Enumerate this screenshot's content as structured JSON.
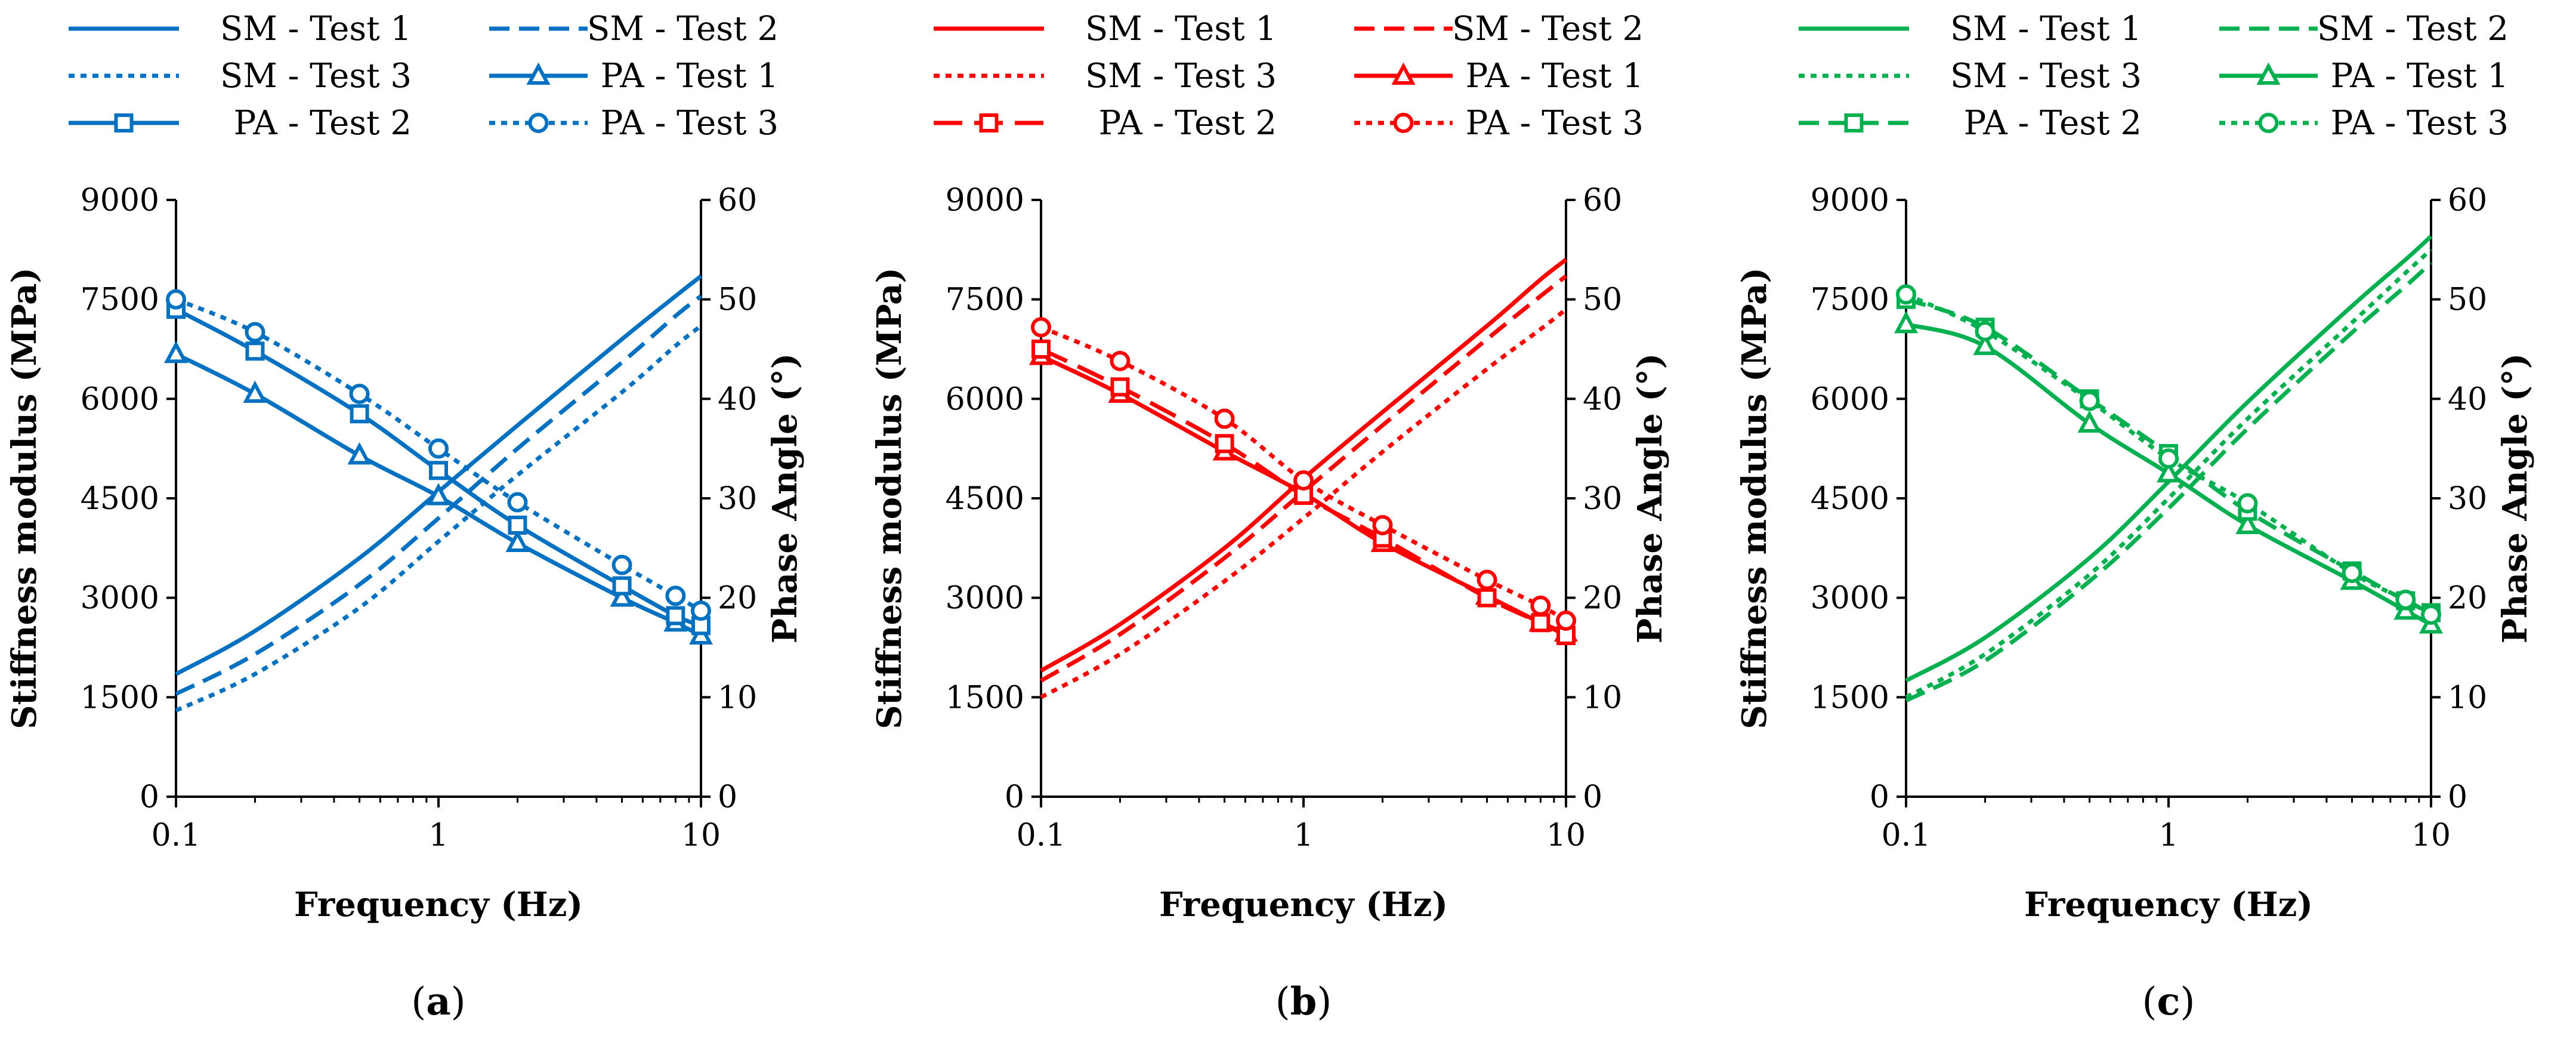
{
  "chart_data": [
    {
      "type": "line",
      "panel": "a",
      "caption": "a",
      "color": "#0070C0",
      "xlabel": "Frequency (Hz)",
      "ylabel": "Stiffness modulus (MPa)",
      "y2label": "Phase Angle (°)",
      "xscale": "log",
      "xlim": [
        0.1,
        10
      ],
      "x_ticks": [
        "0.1",
        "1",
        "10"
      ],
      "ylim": [
        0,
        9000
      ],
      "y_ticks": [
        "0",
        "1500",
        "3000",
        "4500",
        "6000",
        "7500",
        "9000"
      ],
      "y2lim": [
        0,
        60
      ],
      "y2_ticks": [
        "0",
        "10",
        "20",
        "30",
        "40",
        "50",
        "60"
      ],
      "legend": [
        {
          "label": "SM - Test 1",
          "dash": "solid",
          "marker": "none"
        },
        {
          "label": "SM - Test 2",
          "dash": "dash",
          "marker": "none"
        },
        {
          "label": "SM - Test 3",
          "dash": "dot",
          "marker": "none"
        },
        {
          "label": "PA - Test 1",
          "dash": "solid",
          "marker": "triangle"
        },
        {
          "label": "PA - Test 2",
          "dash": "solid",
          "marker": "square"
        },
        {
          "label": "PA - Test 3",
          "dash": "dot",
          "marker": "circle"
        }
      ],
      "series": [
        {
          "name": "SM - Test 1",
          "axis": "left",
          "dash": "solid",
          "marker": "none",
          "x": [
            0.1,
            0.2,
            0.5,
            1,
            2,
            5,
            8,
            10
          ],
          "values": [
            1850,
            2500,
            3600,
            4600,
            5600,
            6900,
            7550,
            7850
          ]
        },
        {
          "name": "SM - Test 2",
          "axis": "left",
          "dash": "dash",
          "marker": "none",
          "x": [
            0.1,
            0.2,
            0.5,
            1,
            2,
            5,
            8,
            10
          ],
          "values": [
            1550,
            2150,
            3200,
            4200,
            5250,
            6550,
            7250,
            7550
          ]
        },
        {
          "name": "SM - Test 3",
          "axis": "left",
          "dash": "dot",
          "marker": "none",
          "x": [
            0.1,
            0.2,
            0.5,
            1,
            2,
            5,
            8,
            10
          ],
          "values": [
            1300,
            1850,
            2850,
            3850,
            4850,
            6100,
            6800,
            7100
          ]
        },
        {
          "name": "PA - Test 1",
          "axis": "right",
          "dash": "solid",
          "marker": "triangle",
          "x": [
            0.1,
            0.2,
            0.5,
            1,
            2,
            5,
            8,
            10
          ],
          "values": [
            44.5,
            40.5,
            34.3,
            30.2,
            25.5,
            20.0,
            17.5,
            16.2
          ]
        },
        {
          "name": "PA - Test 2",
          "axis": "right",
          "dash": "solid",
          "marker": "square",
          "x": [
            0.1,
            0.2,
            0.5,
            1,
            2,
            5,
            8,
            10
          ],
          "values": [
            49.0,
            44.8,
            38.5,
            32.8,
            27.3,
            21.2,
            18.2,
            17.2
          ]
        },
        {
          "name": "PA - Test 3",
          "axis": "right",
          "dash": "dot",
          "marker": "circle",
          "x": [
            0.1,
            0.2,
            0.5,
            1,
            2,
            5,
            8,
            10
          ],
          "values": [
            50.0,
            46.7,
            40.5,
            35.0,
            29.6,
            23.3,
            20.2,
            18.7
          ]
        }
      ]
    },
    {
      "type": "line",
      "panel": "b",
      "caption": "b",
      "color": "#FF0000",
      "xlabel": "Frequency (Hz)",
      "ylabel": "Stiffness modulus (MPa)",
      "y2label": "Phase Angle (°)",
      "xscale": "log",
      "xlim": [
        0.1,
        10
      ],
      "x_ticks": [
        "0.1",
        "1",
        "10"
      ],
      "ylim": [
        0,
        9000
      ],
      "y_ticks": [
        "0",
        "1500",
        "3000",
        "4500",
        "6000",
        "7500",
        "9000"
      ],
      "y2lim": [
        0,
        60
      ],
      "y2_ticks": [
        "0",
        "10",
        "20",
        "30",
        "40",
        "50",
        "60"
      ],
      "legend": [
        {
          "label": "SM - Test 1",
          "dash": "solid",
          "marker": "none"
        },
        {
          "label": "SM - Test 2",
          "dash": "dash",
          "marker": "none"
        },
        {
          "label": "SM - Test 3",
          "dash": "dot",
          "marker": "none"
        },
        {
          "label": "PA - Test 1",
          "dash": "solid",
          "marker": "triangle"
        },
        {
          "label": "PA - Test 2",
          "dash": "longdash",
          "marker": "square"
        },
        {
          "label": "PA - Test 3",
          "dash": "dot",
          "marker": "circle"
        }
      ],
      "series": [
        {
          "name": "SM - Test 1",
          "axis": "left",
          "dash": "solid",
          "marker": "none",
          "x": [
            0.1,
            0.2,
            0.5,
            1,
            2,
            5,
            8,
            10
          ],
          "values": [
            1900,
            2600,
            3750,
            4800,
            5800,
            7100,
            7800,
            8100
          ]
        },
        {
          "name": "SM - Test 2",
          "axis": "left",
          "dash": "dash",
          "marker": "none",
          "x": [
            0.1,
            0.2,
            0.5,
            1,
            2,
            5,
            8,
            10
          ],
          "values": [
            1750,
            2450,
            3600,
            4600,
            5600,
            6900,
            7550,
            7850
          ]
        },
        {
          "name": "SM - Test 3",
          "axis": "left",
          "dash": "dot",
          "marker": "none",
          "x": [
            0.1,
            0.2,
            0.5,
            1,
            2,
            5,
            8,
            10
          ],
          "values": [
            1500,
            2150,
            3250,
            4200,
            5200,
            6450,
            7050,
            7350
          ]
        },
        {
          "name": "PA - Test 1",
          "axis": "right",
          "dash": "solid",
          "marker": "triangle",
          "x": [
            0.1,
            0.2,
            0.5,
            1,
            2,
            5,
            8,
            10
          ],
          "values": [
            44.3,
            40.5,
            34.7,
            30.5,
            25.5,
            20.2,
            17.5,
            16.5
          ]
        },
        {
          "name": "PA - Test 2",
          "axis": "right",
          "dash": "longdash",
          "marker": "square",
          "x": [
            0.1,
            0.2,
            0.5,
            1,
            2,
            5,
            8,
            10
          ],
          "values": [
            45.0,
            41.2,
            35.5,
            30.3,
            26.0,
            20.0,
            17.5,
            16.2
          ]
        },
        {
          "name": "PA - Test 3",
          "axis": "right",
          "dash": "dot",
          "marker": "circle",
          "x": [
            0.1,
            0.2,
            0.5,
            1,
            2,
            5,
            8,
            10
          ],
          "values": [
            47.2,
            43.8,
            38.0,
            31.8,
            27.3,
            21.8,
            19.2,
            17.7
          ]
        }
      ]
    },
    {
      "type": "line",
      "panel": "c",
      "caption": "c",
      "color": "#00B050",
      "xlabel": "Frequency (Hz)",
      "ylabel": "Stiffness modulus (MPa)",
      "y2label": "Phase Angle (°)",
      "xscale": "log",
      "xlim": [
        0.1,
        10
      ],
      "x_ticks": [
        "0.1",
        "1",
        "10"
      ],
      "ylim": [
        0,
        9000
      ],
      "y_ticks": [
        "0",
        "1500",
        "3000",
        "4500",
        "6000",
        "7500",
        "9000"
      ],
      "y2lim": [
        0,
        60
      ],
      "y2_ticks": [
        "0",
        "10",
        "20",
        "30",
        "40",
        "50",
        "60"
      ],
      "legend": [
        {
          "label": "SM - Test 1",
          "dash": "solid",
          "marker": "none"
        },
        {
          "label": "SM - Test 2",
          "dash": "dash",
          "marker": "none"
        },
        {
          "label": "SM - Test 3",
          "dash": "dot",
          "marker": "none"
        },
        {
          "label": "PA - Test 1",
          "dash": "solid",
          "marker": "triangle"
        },
        {
          "label": "PA - Test 2",
          "dash": "dash",
          "marker": "square"
        },
        {
          "label": "PA - Test 3",
          "dash": "dot",
          "marker": "circle"
        }
      ],
      "series": [
        {
          "name": "SM - Test 1",
          "axis": "left",
          "dash": "solid",
          "marker": "none",
          "x": [
            0.1,
            0.2,
            0.5,
            1,
            2,
            5,
            8,
            10
          ],
          "values": [
            1750,
            2400,
            3600,
            4750,
            5950,
            7400,
            8100,
            8450
          ]
        },
        {
          "name": "SM - Test 2",
          "axis": "left",
          "dash": "dash",
          "marker": "none",
          "x": [
            0.1,
            0.2,
            0.5,
            1,
            2,
            5,
            8,
            10
          ],
          "values": [
            1450,
            2050,
            3250,
            4350,
            5550,
            7000,
            7700,
            8050
          ]
        },
        {
          "name": "SM - Test 3",
          "axis": "left",
          "dash": "dot",
          "marker": "none",
          "x": [
            0.1,
            0.2,
            0.5,
            1,
            2,
            5,
            8,
            10
          ],
          "values": [
            1500,
            2150,
            3350,
            4500,
            5700,
            7150,
            7900,
            8250
          ]
        },
        {
          "name": "PA - Test 1",
          "axis": "right",
          "dash": "solid",
          "marker": "triangle",
          "x": [
            0.1,
            0.2,
            0.5,
            1,
            2,
            5,
            8,
            10
          ],
          "values": [
            47.5,
            45.3,
            37.5,
            32.5,
            27.3,
            21.7,
            18.7,
            17.3
          ]
        },
        {
          "name": "PA - Test 2",
          "axis": "right",
          "dash": "dash",
          "marker": "square",
          "x": [
            0.1,
            0.2,
            0.5,
            1,
            2,
            5,
            8,
            10
          ],
          "values": [
            50.0,
            47.2,
            40.0,
            34.5,
            28.7,
            22.7,
            19.7,
            18.5
          ]
        },
        {
          "name": "PA - Test 3",
          "axis": "right",
          "dash": "dot",
          "marker": "circle",
          "x": [
            0.1,
            0.2,
            0.5,
            1,
            2,
            5,
            8,
            10
          ],
          "values": [
            50.5,
            46.8,
            39.8,
            34.0,
            29.5,
            22.5,
            19.8,
            18.3
          ]
        }
      ]
    }
  ]
}
